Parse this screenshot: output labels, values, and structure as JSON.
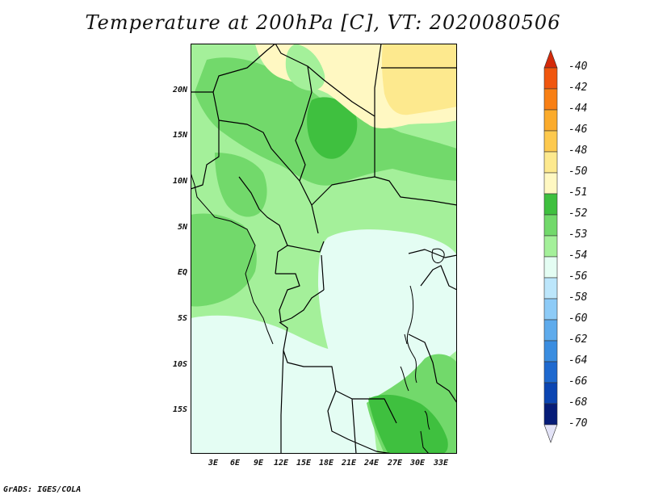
{
  "title": "Temperature at 200hPa [C], VT: 2020080506",
  "footer": "GrADS: IGES/COLA",
  "lat_labels": [
    "20N",
    "15N",
    "10N",
    "5N",
    "EQ",
    "5S",
    "10S",
    "15S"
  ],
  "lon_labels": [
    "3E",
    "6E",
    "9E",
    "12E",
    "15E",
    "18E",
    "21E",
    "24E",
    "27E",
    "30E",
    "33E"
  ],
  "colorbar": {
    "labels": [
      "-40",
      "-42",
      "-44",
      "-46",
      "-48",
      "-50",
      "-51",
      "-52",
      "-53",
      "-54",
      "-56",
      "-58",
      "-60",
      "-62",
      "-64",
      "-66",
      "-68",
      "-70"
    ],
    "colors": [
      "#d42a0a",
      "#f0560e",
      "#f87f14",
      "#fbab2b",
      "#fdc94e",
      "#fde98e",
      "#fff8c2",
      "#3fc03f",
      "#72d96b",
      "#a4f09a",
      "#e4fdf3",
      "#bce6fb",
      "#8dcbf7",
      "#5eabec",
      "#3a8de0",
      "#1e69cf",
      "#0b45b2",
      "#061c78",
      "#e3e3f7"
    ]
  },
  "palette": {
    "land_default": "#a4f09a",
    "green_mid": "#72d96b",
    "green_dark": "#3fc03f",
    "cold": "#e4fdf3",
    "warm_pale": "#fff8c2",
    "warm": "#fde98e"
  }
}
